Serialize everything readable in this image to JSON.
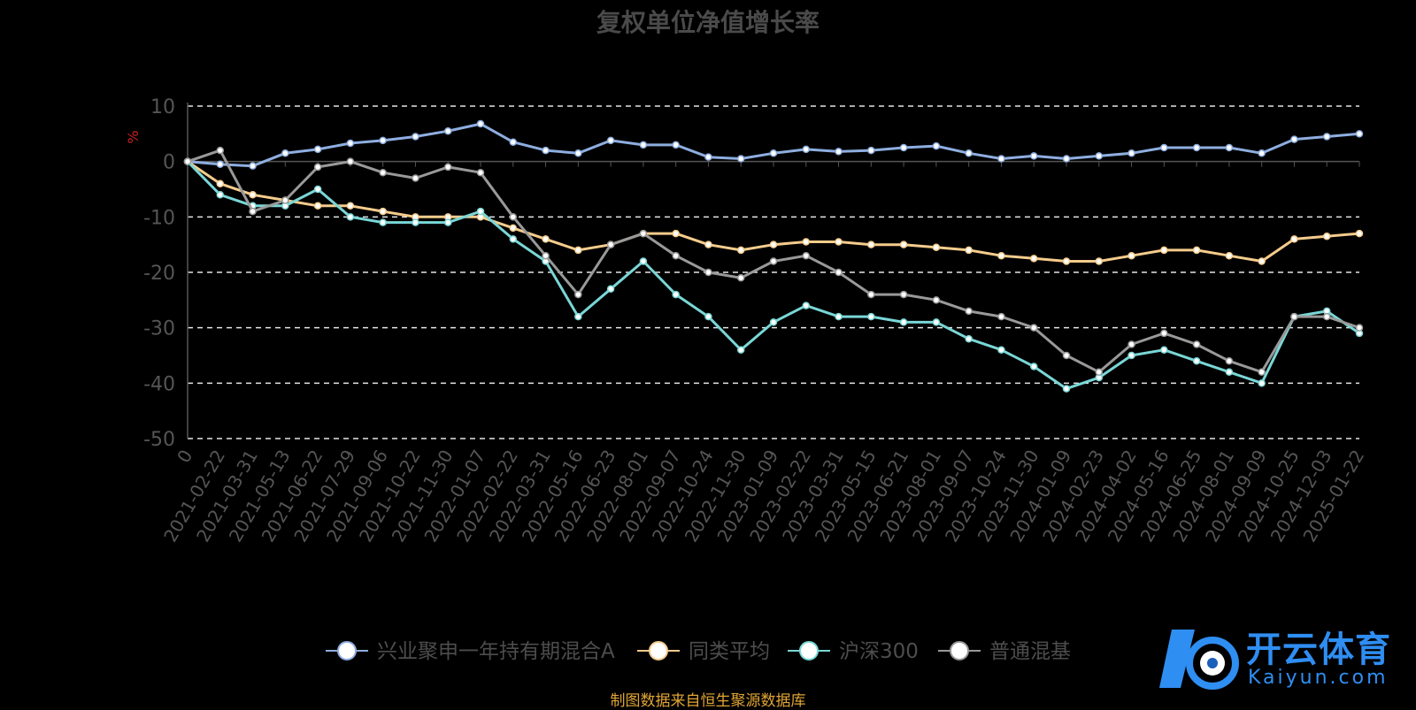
{
  "chart_data": {
    "type": "line",
    "title": "复权单位净值增长率",
    "ylabel": "%",
    "ylim": [
      -50,
      10
    ],
    "yticks": [
      10,
      0,
      -10,
      -20,
      -30,
      -40,
      -50
    ],
    "grid": "horizontal-dashed",
    "legend_position": "bottom",
    "x_tick_labels": [
      "0",
      "2021-02-22",
      "2021-03-31",
      "2021-05-13",
      "2021-06-22",
      "2021-07-29",
      "2021-09-06",
      "2021-10-22",
      "2021-11-30",
      "2022-01-07",
      "2022-02-22",
      "2022-03-31",
      "2022-05-16",
      "2022-06-23",
      "2022-08-01",
      "2022-09-07",
      "2022-10-24",
      "2022-11-30",
      "2023-01-09",
      "2023-02-22",
      "2023-03-31",
      "2023-05-15",
      "2023-06-21",
      "2023-08-01",
      "2023-09-07",
      "2023-10-24",
      "2023-11-30",
      "2024-01-09",
      "2024-02-23",
      "2024-04-02",
      "2024-05-16",
      "2024-06-25",
      "2024-08-01",
      "2024-09-09",
      "2024-10-25",
      "2024-12-03",
      "2025-01-22"
    ],
    "series": [
      {
        "name": "兴业聚申一年持有期混合A",
        "color": "#8eaee0",
        "values": [
          0,
          -0.5,
          -0.8,
          1.5,
          2.2,
          3.3,
          3.8,
          4.5,
          5.5,
          6.8,
          3.5,
          2.0,
          1.5,
          3.8,
          3.0,
          3.0,
          0.8,
          0.5,
          1.5,
          2.2,
          1.8,
          2.0,
          2.5,
          2.8,
          1.5,
          0.5,
          1.0,
          0.5,
          1.0,
          1.5,
          2.5,
          2.5,
          2.5,
          1.5,
          4.0,
          4.5,
          5.0
        ]
      },
      {
        "name": "同类平均",
        "color": "#f5cc8c",
        "values": [
          0,
          -4,
          -6,
          -7,
          -8,
          -8,
          -9,
          -10,
          -10,
          -10,
          -12,
          -14,
          -16,
          -15,
          -13,
          -13,
          -15,
          -16,
          -15,
          -14.5,
          -14.5,
          -15,
          -15,
          -15.5,
          -16,
          -17,
          -17.5,
          -18,
          -18,
          -17,
          -16,
          -16,
          -17,
          -18,
          -14,
          -13.5,
          -13
        ]
      },
      {
        "name": "沪深300",
        "color": "#7ad6d6",
        "values": [
          0,
          -6,
          -8,
          -8,
          -5,
          -10,
          -11,
          -11,
          -11,
          -9,
          -14,
          -18,
          -28,
          -23,
          -18,
          -24,
          -28,
          -34,
          -29,
          -26,
          -28,
          -28,
          -29,
          -29,
          -32,
          -34,
          -37,
          -41,
          -39,
          -35,
          -34,
          -36,
          -38,
          -40,
          -28,
          -27,
          -31
        ]
      },
      {
        "name": "普通混基",
        "color": "#999999",
        "values": [
          0,
          2,
          -9,
          -7,
          -1,
          0,
          -2,
          -3,
          -1,
          -2,
          -10,
          -17,
          -24,
          -15,
          -13,
          -17,
          -20,
          -21,
          -18,
          -17,
          -20,
          -24,
          -24,
          -25,
          -27,
          -28,
          -30,
          -35,
          -38,
          -33,
          -31,
          -33,
          -36,
          -38,
          -28,
          -28,
          -30
        ]
      }
    ],
    "source_note": "制图数据来自恒生聚源数据库",
    "watermark": {
      "cn": "开云体育",
      "en": "Kaiyun.com"
    }
  }
}
